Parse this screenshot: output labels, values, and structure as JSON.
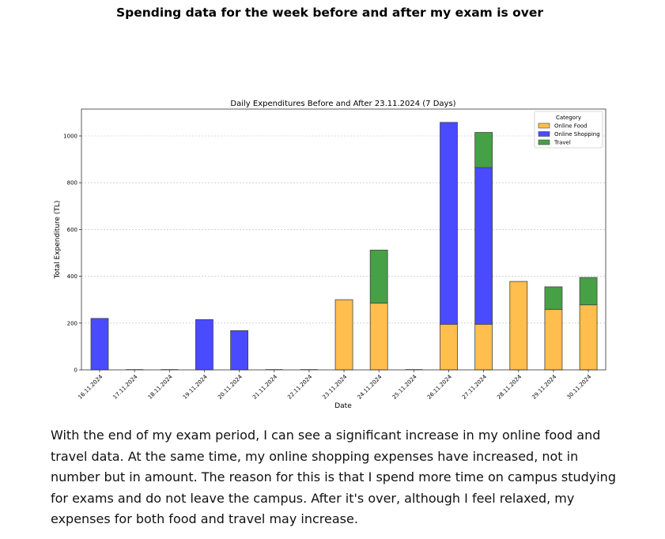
{
  "heading": "Spending data for the week before and after my exam is over",
  "chart_data": {
    "type": "bar",
    "stacked": true,
    "title": "Daily Expenditures Before and After 23.11.2024 (7 Days)",
    "xlabel": "Date",
    "ylabel": "Total Expenditure (TL)",
    "ylim": [
      0,
      1100
    ],
    "yticks": [
      0,
      200,
      400,
      600,
      800,
      1000
    ],
    "grid": "horizontal dashed",
    "legend": {
      "title": "Category",
      "placement": "top-right"
    },
    "categories": [
      "16.11.2024",
      "17.11.2024",
      "18.11.2024",
      "19.11.2024",
      "20.11.2024",
      "21.11.2024",
      "22.11.2024",
      "23.11.2024",
      "24.11.2024",
      "25.11.2024",
      "26.11.2024",
      "27.11.2024",
      "28.11.2024",
      "29.11.2024",
      "30.11.2024"
    ],
    "series": [
      {
        "name": "Online Food",
        "color": "#FFBE4D",
        "values": [
          0,
          0,
          0,
          0,
          0,
          0,
          0,
          300,
          285,
          0,
          195,
          195,
          378,
          258,
          278
        ]
      },
      {
        "name": "Online Shopping",
        "color": "#4A4AFF",
        "values": [
          220,
          0,
          0,
          215,
          168,
          0,
          0,
          0,
          0,
          0,
          863,
          670,
          0,
          0,
          0
        ]
      },
      {
        "name": "Travel",
        "color": "#46A046",
        "values": [
          0,
          0,
          0,
          0,
          0,
          0,
          0,
          0,
          227,
          0,
          0,
          150,
          0,
          97,
          117
        ]
      }
    ]
  },
  "paragraph": {
    "lines": [
      "With the end of my exam period, I can see a significant increase in my online food and",
      "travel data. At the same time, my online shopping expenses have increased, not in",
      "number but in amount. The reason for this is that I spend more time on campus studying",
      "for exams and do not leave the campus. After it's over, although I feel relaxed, my",
      "expenses for both food and travel may increase."
    ]
  }
}
